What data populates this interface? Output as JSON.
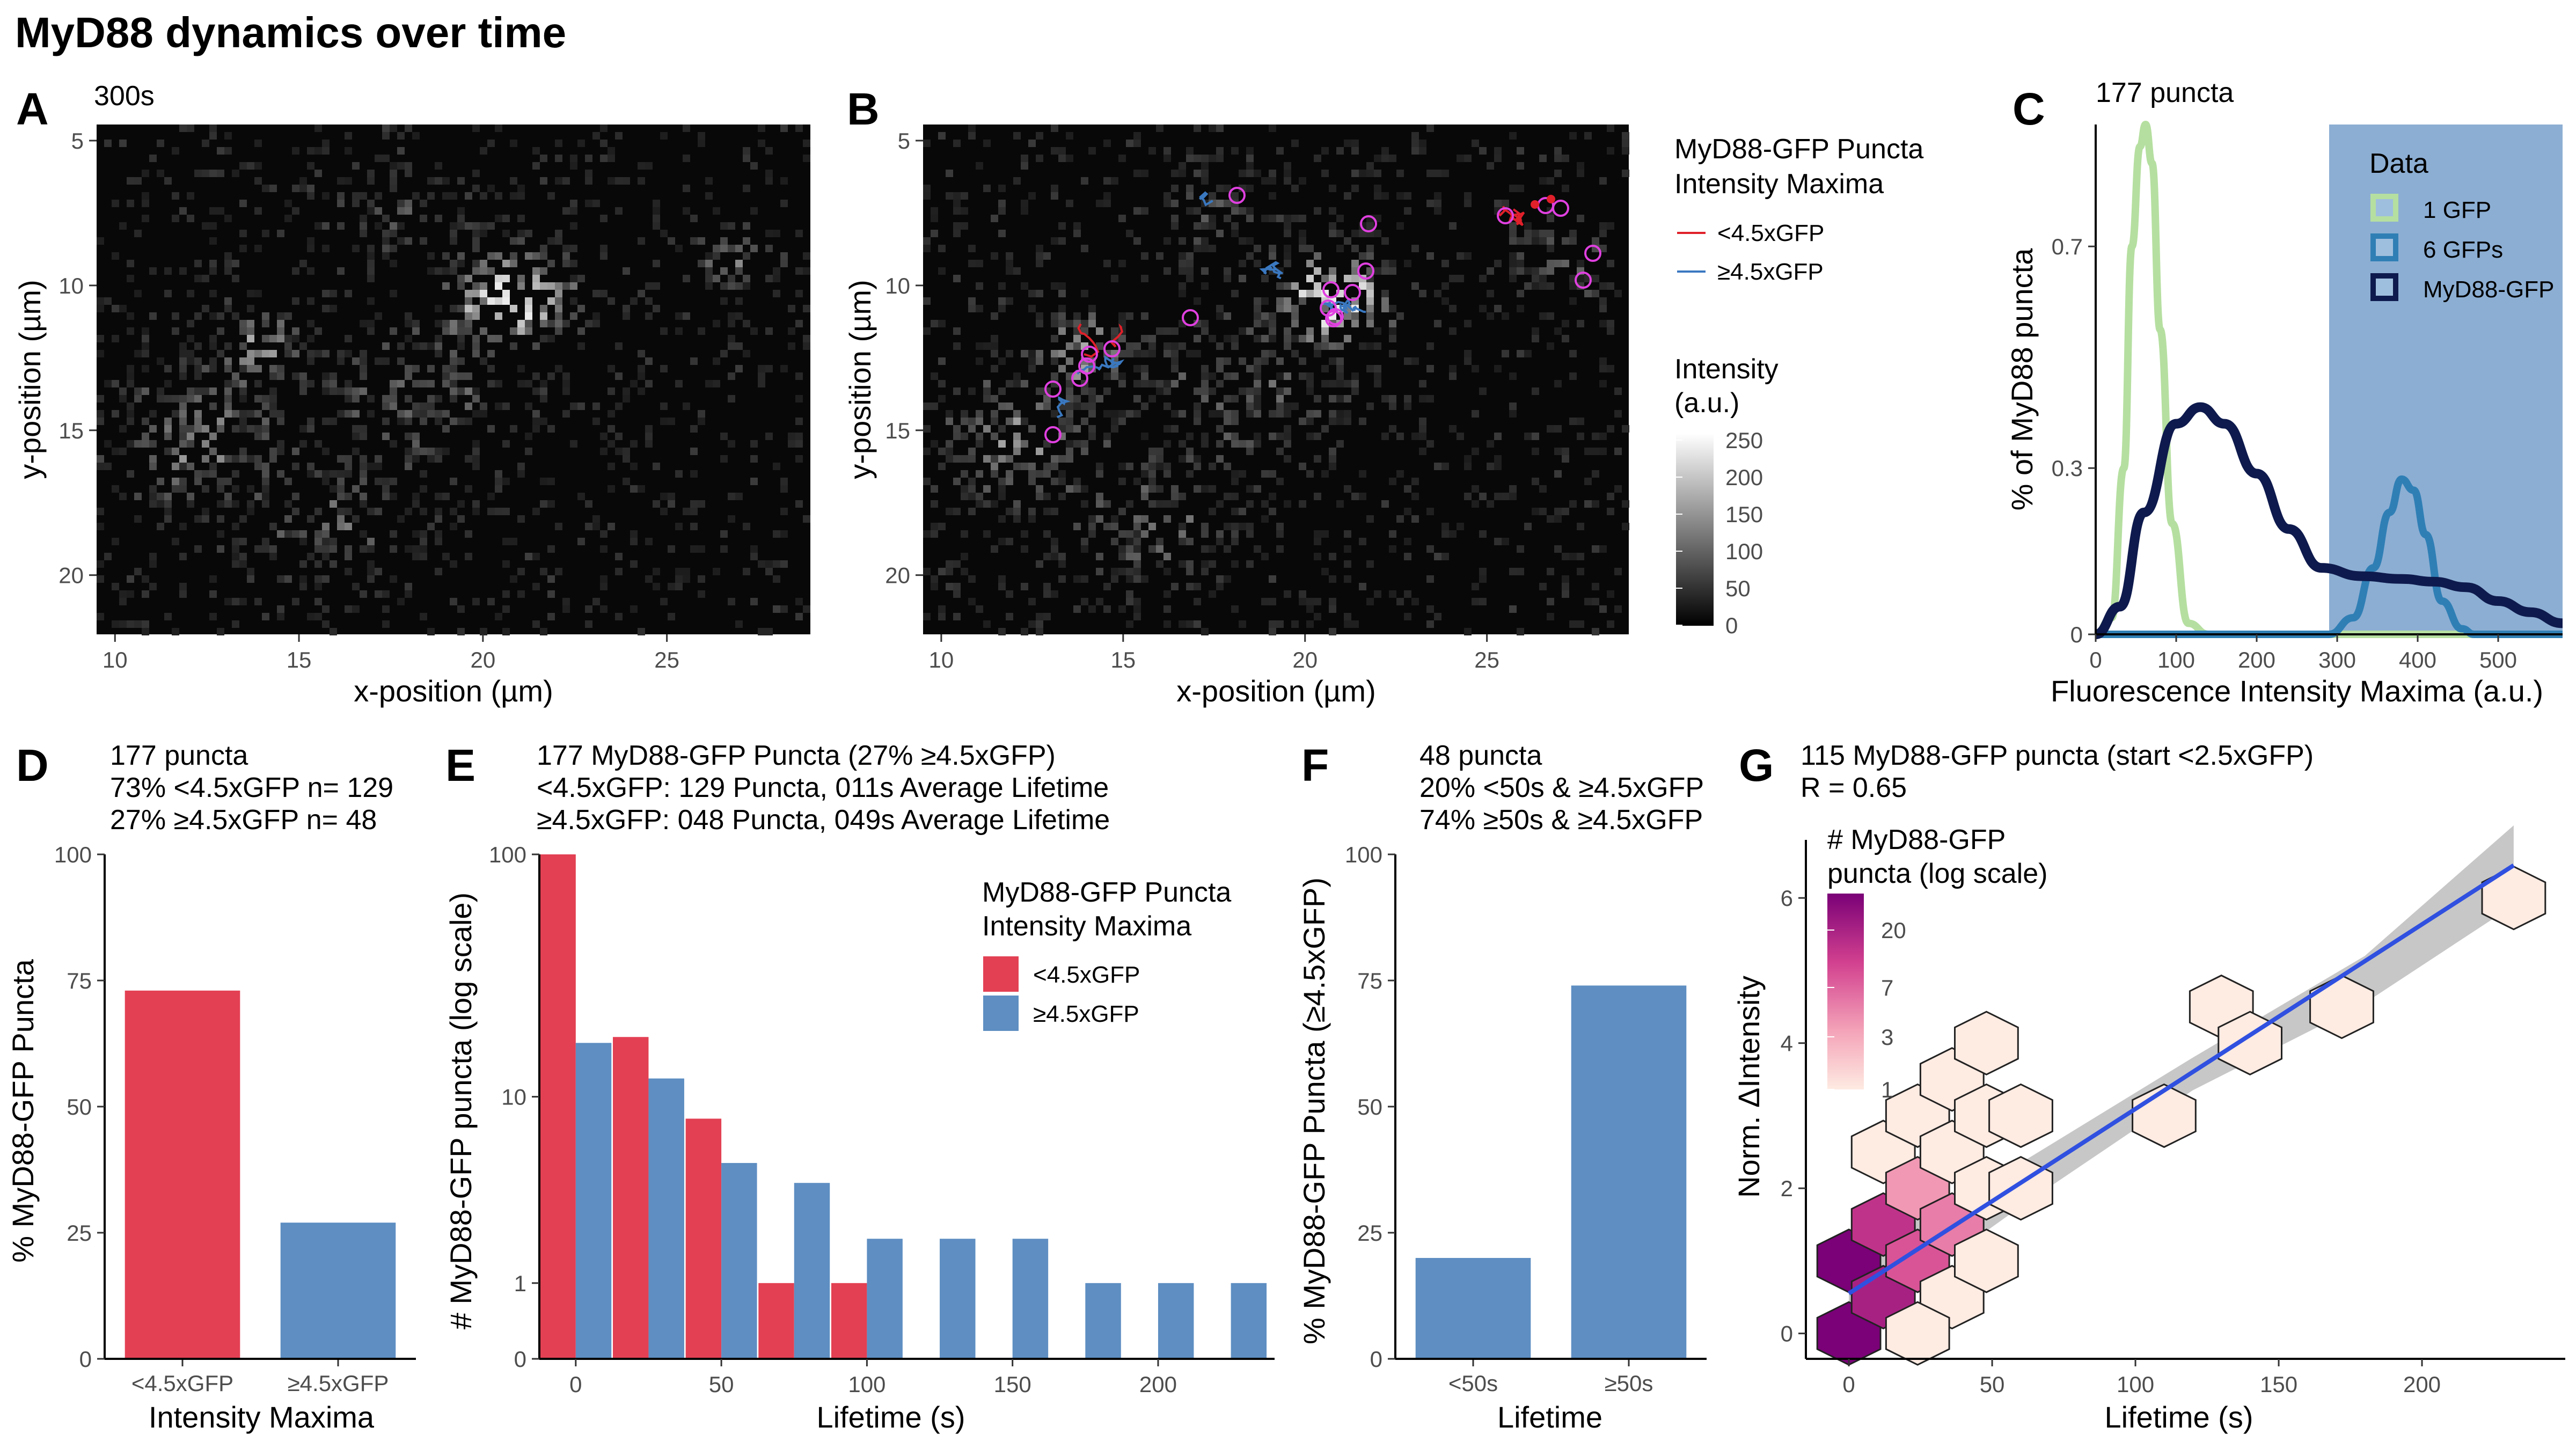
{
  "figure_title": "MyD88 dynamics over time",
  "panel_letters": [
    "A",
    "B",
    "C",
    "D",
    "E",
    "F",
    "G"
  ],
  "colors": {
    "low": "#E34053",
    "high": "#5E8EC2",
    "gfp1": "#B5DFA0",
    "gfp6": "#2F7FB5",
    "myd88": "#0E1A4D",
    "fit": "#3050E0",
    "band_c": "#8CAED3"
  },
  "panelA": {
    "subtitle": "300s",
    "xlabel": "x-position (µm)",
    "ylabel": "y-position (µm)",
    "xticks": [
      "10",
      "15",
      "20",
      "25"
    ],
    "yticks": [
      "5",
      "10",
      "15",
      "20"
    ]
  },
  "panelB": {
    "xlabel": "x-position (µm)",
    "ylabel": "y-position (µm)",
    "xticks": [
      "10",
      "15",
      "20",
      "25"
    ],
    "yticks": [
      "5",
      "10",
      "15",
      "20"
    ],
    "legend_title_1": "MyD88-GFP Puncta",
    "legend_title_2": "Intensity Maxima",
    "legend_items": [
      "<4.5xGFP",
      "≥4.5xGFP"
    ],
    "intensity_title_1": "Intensity",
    "intensity_title_2": "(a.u.)",
    "intensity_ticks": [
      "250",
      "200",
      "150",
      "100",
      "50",
      "0"
    ]
  },
  "panelC": {
    "subtitle": "177 puncta",
    "xlabel": "Fluorescence Intensity Maxima (a.u.)",
    "ylabel": "% of MyD88 puncta",
    "xticks": [
      "0",
      "100",
      "200",
      "300",
      "400",
      "500"
    ],
    "yticks": [
      "0",
      "0.3",
      "0.7"
    ],
    "legend_title": "Data",
    "legend_items": [
      "1 GFP",
      "6 GFPs",
      "MyD88-GFP"
    ],
    "shaded_region_x": [
      290,
      580
    ]
  },
  "panelD": {
    "subtitle_lines": [
      "177 puncta",
      "73% <4.5xGFP n= 129",
      "27% ≥4.5xGFP n= 48"
    ],
    "xlabel": "Intensity Maxima",
    "ylabel": "% MyD88-GFP Puncta",
    "yticks": [
      "0",
      "25",
      "50",
      "75",
      "100"
    ]
  },
  "panelE": {
    "subtitle_lines": [
      "177 MyD88-GFP Puncta (27% ≥4.5xGFP)",
      "<4.5xGFP: 129 Puncta, 011s Average Lifetime",
      "≥4.5xGFP: 048 Puncta, 049s Average Lifetime"
    ],
    "xlabel": "Lifetime (s)",
    "ylabel": "# MyD88-GFP puncta (log scale)",
    "xticks": [
      "0",
      "50",
      "100",
      "150",
      "200"
    ],
    "yticks": [
      "0",
      "1",
      "10",
      "100"
    ],
    "legend_title_1": "MyD88-GFP Puncta",
    "legend_title_2": "Intensity Maxima",
    "legend_items": [
      "<4.5xGFP",
      "≥4.5xGFP"
    ]
  },
  "panelF": {
    "subtitle_lines": [
      "48 puncta",
      "20% <50s & ≥4.5xGFP",
      "74% ≥50s & ≥4.5xGFP"
    ],
    "xlabel": "Lifetime",
    "ylabel": "% MyD88-GFP Puncta (≥4.5xGFP)",
    "yticks": [
      "0",
      "25",
      "50",
      "75",
      "100"
    ]
  },
  "panelG": {
    "subtitle_lines": [
      "115 MyD88-GFP puncta (start <2.5xGFP)",
      "R = 0.65"
    ],
    "xlabel": "Lifetime (s)",
    "ylabel": "Norm. ΔIntensity",
    "xticks": [
      "0",
      "50",
      "100",
      "150",
      "200"
    ],
    "yticks": [
      "0",
      "2",
      "4",
      "6"
    ],
    "legend_title_1": "# MyD88-GFP",
    "legend_title_2": "puncta (log scale)",
    "legend_ticks": [
      "20",
      "7",
      "3",
      "1"
    ]
  },
  "chart_data": [
    {
      "panel": "C",
      "type": "line",
      "x_range": [
        0,
        580
      ],
      "y_range": [
        0,
        0.92
      ],
      "series": [
        {
          "name": "1 GFP",
          "x": [
            0,
            20,
            35,
            45,
            55,
            62,
            70,
            80,
            95,
            115,
            140,
            300,
            580
          ],
          "y": [
            0,
            0.03,
            0.3,
            0.7,
            0.88,
            0.92,
            0.85,
            0.55,
            0.2,
            0.02,
            0,
            0,
            0
          ]
        },
        {
          "name": "6 GFPs",
          "x": [
            0,
            290,
            320,
            345,
            365,
            380,
            395,
            410,
            430,
            455,
            470,
            580
          ],
          "y": [
            0,
            0,
            0.03,
            0.12,
            0.22,
            0.28,
            0.26,
            0.18,
            0.06,
            0.01,
            0,
            0
          ]
        },
        {
          "name": "MyD88-GFP",
          "x": [
            0,
            30,
            60,
            100,
            130,
            160,
            200,
            240,
            280,
            330,
            380,
            420,
            460,
            500,
            540,
            580
          ],
          "y": [
            0,
            0.05,
            0.22,
            0.38,
            0.41,
            0.38,
            0.29,
            0.19,
            0.12,
            0.105,
            0.1,
            0.095,
            0.085,
            0.06,
            0.04,
            0.02
          ]
        }
      ]
    },
    {
      "panel": "D",
      "type": "bar",
      "categories": [
        "<4.5xGFP",
        "≥4.5xGFP"
      ],
      "values": [
        73,
        27
      ],
      "ylim": [
        0,
        100
      ]
    },
    {
      "panel": "E",
      "type": "bar",
      "ylim": [
        0,
        100
      ],
      "scale": "log",
      "series": [
        {
          "name": "<4.5xGFP",
          "x": [
            0,
            25,
            50,
            75,
            100
          ],
          "values": [
            100,
            18,
            8,
            1,
            1
          ]
        },
        {
          "name": "≥4.5xGFP",
          "x": [
            0,
            25,
            50,
            75,
            100,
            125,
            150,
            175,
            200,
            225
          ],
          "values": [
            17,
            12,
            5,
            4,
            2,
            2,
            2,
            1,
            1,
            1
          ]
        }
      ]
    },
    {
      "panel": "F",
      "type": "bar",
      "categories": [
        "<50s",
        "≥50s"
      ],
      "values": [
        20,
        74
      ],
      "ylim": [
        0,
        100
      ]
    },
    {
      "panel": "G",
      "type": "heatmap",
      "x_range": [
        0,
        235
      ],
      "y_range": [
        0,
        6.8
      ],
      "cells": [
        {
          "x": 0,
          "y": 0,
          "count": 20
        },
        {
          "x": 0,
          "y": 1,
          "count": 20
        },
        {
          "x": 12,
          "y": 0.5,
          "count": 12
        },
        {
          "x": 12,
          "y": 1.5,
          "count": 9
        },
        {
          "x": 24,
          "y": 1,
          "count": 6
        },
        {
          "x": 12,
          "y": 2.5,
          "count": 1
        },
        {
          "x": 24,
          "y": 2,
          "count": 3
        },
        {
          "x": 36,
          "y": 1.5,
          "count": 4
        },
        {
          "x": 24,
          "y": 3,
          "count": 1
        },
        {
          "x": 36,
          "y": 2.5,
          "count": 1
        },
        {
          "x": 48,
          "y": 2,
          "count": 1
        },
        {
          "x": 36,
          "y": 0.5,
          "count": 1
        },
        {
          "x": 36,
          "y": 3.5,
          "count": 1
        },
        {
          "x": 48,
          "y": 3,
          "count": 1
        },
        {
          "x": 60,
          "y": 3,
          "count": 1
        },
        {
          "x": 48,
          "y": 4,
          "count": 1
        },
        {
          "x": 24,
          "y": 0,
          "count": 1
        },
        {
          "x": 60,
          "y": 2,
          "count": 1
        },
        {
          "x": 48,
          "y": 1,
          "count": 1
        },
        {
          "x": 110,
          "y": 3,
          "count": 1
        },
        {
          "x": 130,
          "y": 4.5,
          "count": 1
        },
        {
          "x": 140,
          "y": 4,
          "count": 1
        },
        {
          "x": 172,
          "y": 4.5,
          "count": 1
        },
        {
          "x": 232,
          "y": 6,
          "count": 1
        }
      ],
      "fit_line": {
        "x": [
          0,
          232
        ],
        "y": [
          0.55,
          6.45
        ]
      }
    }
  ]
}
